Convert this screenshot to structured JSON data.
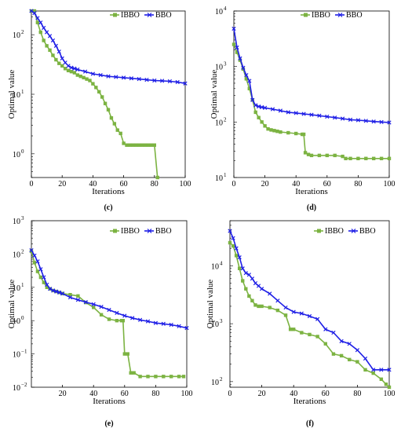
{
  "colors": {
    "ibbo": "#7cb342",
    "bbo": "#1f1fe6",
    "axis": "#000000"
  },
  "chart_data": [
    {
      "panel": "c",
      "label": "(c)",
      "type": "line",
      "xlabel": "Iterations",
      "ylabel": "Optimal value",
      "xlim": [
        0,
        100
      ],
      "ylim": [
        0.4,
        250
      ],
      "yscale": "log",
      "xticks": [
        0,
        20,
        40,
        60,
        80,
        100
      ],
      "yticks": [
        {
          "v": 1,
          "t": "10",
          "e": "0"
        },
        {
          "v": 10,
          "t": "10",
          "e": "1"
        },
        {
          "v": 100,
          "t": "10",
          "e": "2"
        }
      ],
      "legend": "top-right",
      "series": [
        {
          "name": "IBBO",
          "marker": "square",
          "x": [
            0,
            2,
            4,
            6,
            8,
            10,
            12,
            14,
            16,
            18,
            20,
            22,
            24,
            26,
            28,
            30,
            32,
            34,
            36,
            38,
            40,
            42,
            44,
            46,
            48,
            50,
            52,
            54,
            56,
            58,
            60,
            62,
            64,
            66,
            68,
            70,
            72,
            74,
            76,
            78,
            80,
            82
          ],
          "y": [
            250,
            250,
            160,
            110,
            80,
            65,
            55,
            45,
            38,
            33,
            30,
            27,
            25,
            24,
            23,
            21,
            20,
            19,
            18,
            17,
            15,
            13,
            11,
            9,
            7,
            5.5,
            4,
            3.2,
            2.5,
            2.2,
            1.5,
            1.4,
            1.4,
            1.4,
            1.4,
            1.4,
            1.4,
            1.4,
            1.4,
            1.4,
            1.4,
            0.4
          ]
        },
        {
          "name": "BBO",
          "marker": "x",
          "x": [
            0,
            2,
            4,
            6,
            8,
            10,
            12,
            14,
            16,
            18,
            20,
            22,
            24,
            26,
            28,
            30,
            35,
            40,
            45,
            50,
            55,
            60,
            65,
            70,
            75,
            80,
            85,
            90,
            95,
            100
          ],
          "y": [
            250,
            230,
            190,
            160,
            130,
            110,
            95,
            80,
            65,
            52,
            40,
            34,
            30,
            28,
            27,
            26,
            24,
            22,
            21,
            20,
            19.5,
            19,
            18.5,
            18,
            17.5,
            17,
            16.8,
            16.5,
            16,
            15.2
          ]
        }
      ]
    },
    {
      "panel": "d",
      "label": "(d)",
      "type": "line",
      "xlabel": "Iterations",
      "ylabel": "Optimal value",
      "xlim": [
        0,
        100
      ],
      "ylim": [
        10,
        10000
      ],
      "yscale": "log",
      "xticks": [
        0,
        20,
        40,
        60,
        80,
        100
      ],
      "yticks": [
        {
          "v": 10,
          "t": "10",
          "e": "1"
        },
        {
          "v": 100,
          "t": "10",
          "e": "2"
        },
        {
          "v": 1000,
          "t": "10",
          "e": "3"
        },
        {
          "v": 10000,
          "t": "10",
          "e": "4"
        }
      ],
      "legend": "top-right",
      "series": [
        {
          "name": "IBBO",
          "marker": "square",
          "x": [
            0,
            2,
            4,
            6,
            8,
            10,
            12,
            14,
            16,
            18,
            20,
            22,
            24,
            26,
            28,
            30,
            35,
            40,
            44,
            45,
            46,
            48,
            50,
            55,
            60,
            65,
            70,
            72,
            75,
            80,
            85,
            90,
            95,
            100
          ],
          "y": [
            2500,
            1800,
            1300,
            900,
            600,
            400,
            250,
            150,
            120,
            100,
            85,
            75,
            72,
            70,
            68,
            66,
            64,
            62,
            60,
            60,
            28,
            26,
            25,
            25,
            25,
            25,
            24,
            22,
            22,
            22,
            22,
            22,
            22,
            22
          ]
        },
        {
          "name": "BBO",
          "marker": "x",
          "x": [
            0,
            2,
            4,
            6,
            8,
            10,
            12,
            14,
            16,
            18,
            20,
            25,
            30,
            35,
            40,
            45,
            50,
            55,
            60,
            65,
            70,
            75,
            80,
            85,
            90,
            95,
            100
          ],
          "y": [
            4800,
            2200,
            1400,
            950,
            700,
            550,
            250,
            200,
            190,
            185,
            180,
            170,
            160,
            150,
            145,
            140,
            135,
            130,
            125,
            120,
            115,
            110,
            108,
            105,
            102,
            100,
            98
          ]
        }
      ]
    },
    {
      "panel": "e",
      "label": "(e)",
      "type": "line",
      "xlabel": "Iterations",
      "ylabel": "Optimal value",
      "xlim": [
        0,
        100
      ],
      "ylim": [
        0.01,
        1000
      ],
      "yscale": "log",
      "xticks": [
        20,
        40,
        60,
        80,
        100
      ],
      "yticks": [
        {
          "v": 0.01,
          "t": "10",
          "e": "−2"
        },
        {
          "v": 0.1,
          "t": "10",
          "e": "−1"
        },
        {
          "v": 1,
          "t": "10",
          "e": "0"
        },
        {
          "v": 10,
          "t": "10",
          "e": "1"
        },
        {
          "v": 100,
          "t": "10",
          "e": "2"
        },
        {
          "v": 1000,
          "t": "10",
          "e": "3"
        }
      ],
      "legend": "top-right",
      "series": [
        {
          "name": "IBBO",
          "marker": "square",
          "x": [
            0,
            2,
            4,
            6,
            8,
            10,
            12,
            14,
            16,
            18,
            20,
            25,
            30,
            35,
            40,
            45,
            50,
            55,
            58,
            59,
            60,
            62,
            64,
            66,
            70,
            75,
            80,
            85,
            90,
            95,
            98
          ],
          "y": [
            120,
            55,
            30,
            20,
            14,
            10,
            9,
            8,
            7.5,
            7,
            6.5,
            6,
            5.5,
            3.5,
            2.5,
            1.5,
            1.1,
            1.0,
            1.0,
            1.0,
            0.1,
            0.1,
            0.027,
            0.027,
            0.021,
            0.021,
            0.021,
            0.021,
            0.021,
            0.021,
            0.021
          ]
        },
        {
          "name": "BBO",
          "marker": "x",
          "x": [
            0,
            2,
            4,
            6,
            8,
            10,
            12,
            14,
            16,
            18,
            20,
            25,
            30,
            35,
            40,
            45,
            50,
            55,
            60,
            65,
            70,
            75,
            80,
            85,
            90,
            95,
            100
          ],
          "y": [
            130,
            90,
            60,
            35,
            20,
            12,
            9,
            8,
            7.5,
            7,
            6.5,
            5,
            4.2,
            3.6,
            3.1,
            2.6,
            2.1,
            1.7,
            1.4,
            1.2,
            1.05,
            0.95,
            0.85,
            0.8,
            0.75,
            0.68,
            0.6
          ]
        }
      ]
    },
    {
      "panel": "f",
      "label": "(f)",
      "type": "line",
      "xlabel": "Iterations",
      "ylabel": "Optimal value",
      "xlim": [
        0,
        100
      ],
      "ylim": [
        80,
        60000
      ],
      "yscale": "log",
      "xticks": [
        0,
        20,
        40,
        60,
        80,
        100
      ],
      "yticks": [
        {
          "v": 100,
          "t": "10",
          "e": "2"
        },
        {
          "v": 1000,
          "t": "10",
          "e": "3"
        },
        {
          "v": 10000,
          "t": "10",
          "e": "4"
        }
      ],
      "legend": "top-right",
      "series": [
        {
          "name": "IBBO",
          "marker": "square",
          "x": [
            0,
            2,
            4,
            6,
            8,
            10,
            12,
            14,
            16,
            18,
            20,
            25,
            30,
            35,
            38,
            40,
            45,
            50,
            55,
            60,
            65,
            70,
            75,
            80,
            85,
            90,
            95,
            98,
            100
          ],
          "y": [
            25000,
            22000,
            15000,
            9000,
            5500,
            4000,
            3000,
            2500,
            2100,
            2000,
            2000,
            1900,
            1700,
            1400,
            800,
            800,
            700,
            650,
            600,
            450,
            300,
            280,
            240,
            220,
            160,
            140,
            110,
            90,
            80
          ]
        },
        {
          "name": "BBO",
          "marker": "x",
          "x": [
            0,
            2,
            4,
            6,
            8,
            10,
            12,
            14,
            16,
            18,
            20,
            25,
            30,
            35,
            40,
            45,
            50,
            55,
            60,
            65,
            70,
            75,
            80,
            85,
            90,
            95,
            100
          ],
          "y": [
            40000,
            30000,
            20000,
            14000,
            9000,
            7500,
            7000,
            6000,
            5000,
            4500,
            4000,
            3300,
            2500,
            1900,
            1600,
            1500,
            1350,
            1200,
            800,
            700,
            500,
            450,
            350,
            250,
            160,
            160,
            160
          ]
        }
      ]
    }
  ]
}
